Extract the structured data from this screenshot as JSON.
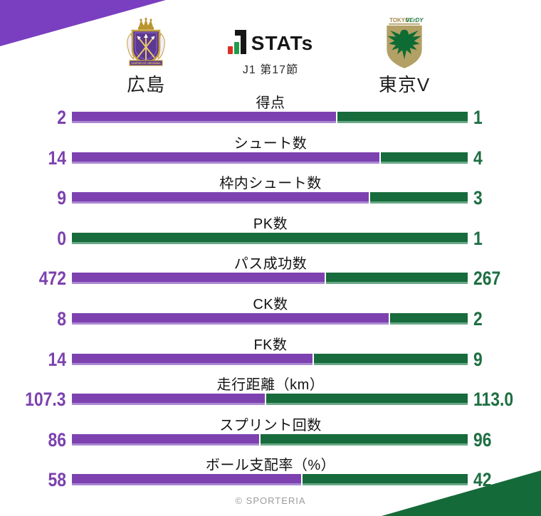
{
  "header": {
    "home_team": {
      "name": "広島",
      "emblem_banner_text": "SANFRECCE HIROSHIMA"
    },
    "away_team": {
      "name": "東京V",
      "emblem_text_tokyo": "TOKYO",
      "emblem_text_verdy": "VErDY"
    },
    "logo": {
      "text": "STATs"
    },
    "round": "J1 第17節"
  },
  "colors": {
    "home_purple": "#7c42ae",
    "away_green": "#176b3c",
    "triangle_purple": "#7a3fc0",
    "triangle_green": "#156a39",
    "logo_red": "#d93025",
    "logo_green": "#1f9d49"
  },
  "chart_data": {
    "type": "bar",
    "orientation": "horizontal paired stacked bars, one pair per stat, value labels at both ends",
    "title": "STATs",
    "subtitle": "J1 第17節",
    "legend_position": "top (team emblems and names as column headers)",
    "grid": false,
    "categories": [
      "得点",
      "シュート数",
      "枠内シュート数",
      "PK数",
      "パス成功数",
      "CK数",
      "FK数",
      "走行距離（km）",
      "スプリント回数",
      "ボール支配率（%）"
    ],
    "series": [
      {
        "name": "広島",
        "color": "#7c42ae",
        "values": [
          2,
          14,
          9,
          0,
          472,
          8,
          14,
          107.3,
          86,
          58
        ],
        "display": [
          "2",
          "14",
          "9",
          "0",
          "472",
          "8",
          "14",
          "107.3",
          "86",
          "58"
        ]
      },
      {
        "name": "東京V",
        "color": "#176b3c",
        "values": [
          1,
          4,
          3,
          1,
          267,
          2,
          9,
          113.0,
          96,
          42
        ],
        "display": [
          "1",
          "4",
          "3",
          "1",
          "267",
          "2",
          "9",
          "113.0",
          "96",
          "42"
        ]
      }
    ]
  },
  "footer": {
    "copyright": "© SPORTERIA"
  }
}
